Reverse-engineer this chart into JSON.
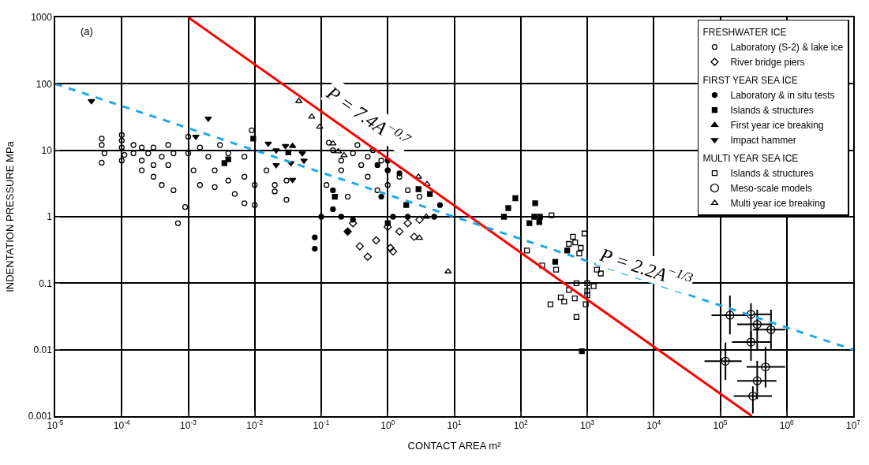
{
  "chart_data": {
    "type": "scatter",
    "xlabel": "CONTACT AREA m²",
    "ylabel": "INDENTATION PRESSURE MPa",
    "annotations": [
      "(a)",
      "FRESHWATER ICE",
      "FIRST YEAR SEA ICE",
      "MULTI YEAR SEA ICE"
    ],
    "log": "xy",
    "grid": true,
    "legend": "top right",
    "xlim": [
      1e-05,
      10000000
    ],
    "ylim": [
      0.001,
      1000
    ],
    "xticks": [
      {
        "value": 1e-05,
        "label": "10$^{-5}$"
      },
      {
        "value": 0.0001,
        "label": "10$^{-4}$"
      },
      {
        "value": 0.001,
        "label": "10$^{-3}$"
      },
      {
        "value": 0.01,
        "label": "10$^{-2}$"
      },
      {
        "value": 0.1,
        "label": "10$^{-1}$"
      },
      {
        "value": 1,
        "label": "10$^{0}$"
      },
      {
        "value": 10,
        "label": "10$^{1}$"
      },
      {
        "value": 100,
        "label": "10$^{2}$"
      },
      {
        "value": 1000,
        "label": "10$^{3}$"
      },
      {
        "value": 10000,
        "label": "10$^{4}$"
      },
      {
        "value": 100000,
        "label": "10$^{5}$"
      },
      {
        "value": 1000000,
        "label": "10$^{6}$"
      },
      {
        "value": 10000000,
        "label": "10$^{7}$"
      }
    ],
    "yticks": [
      0.001,
      0.01,
      0.1,
      1,
      10,
      100,
      1000
    ],
    "series": [
      {
        "name": "Laboratory (S-2) & lake ice",
        "marker": "circle-open",
        "color": "#000000",
        "x": [
          5e-05,
          5e-05,
          5.5e-05,
          5e-05,
          0.0001,
          0.0001,
          0.0001,
          0.00011,
          0.0001,
          0.00015,
          0.00015,
          0.0002,
          0.0002,
          0.0002,
          0.00025,
          0.0003,
          0.0003,
          0.0003,
          0.0004,
          0.0004,
          0.0005,
          0.0005,
          0.0006,
          0.0006,
          0.0007,
          0.0009,
          0.001,
          0.001,
          0.0012,
          0.0015,
          0.0015,
          0.002,
          0.0025,
          0.0025,
          0.003,
          0.004,
          0.004,
          0.005,
          0.007,
          0.007,
          0.007,
          0.009,
          0.01,
          0.01,
          0.015,
          0.02,
          0.02,
          0.03,
          0.03,
          0.13,
          0.15,
          0.2,
          0.3,
          0.5,
          0.8,
          0.2,
          0.5,
          1,
          2,
          0.7,
          3,
          1.5,
          0.4,
          0.12,
          0.25,
          1,
          0.35,
          0.6
        ],
        "values": [
          15,
          12,
          9,
          6.5,
          17,
          14,
          11,
          8.5,
          7,
          12,
          9,
          11,
          7,
          5,
          9,
          11,
          6,
          4,
          8,
          3,
          12,
          6,
          9,
          2.5,
          0.8,
          1.4,
          16,
          9,
          5,
          3,
          11,
          8,
          5,
          2.8,
          12,
          9,
          3.5,
          2.2,
          8,
          4,
          1.6,
          20,
          3,
          1.5,
          5,
          3,
          2.4,
          3.5,
          1.8,
          13,
          10,
          7,
          9,
          8,
          7,
          5,
          4,
          3,
          2.5,
          2.5,
          2,
          4,
          6,
          3,
          2,
          5,
          12,
          10
        ]
      },
      {
        "name": "River bridge piers",
        "marker": "diamond-open",
        "color": "#000000",
        "x": [
          0.3,
          0.67,
          0.38,
          1.1,
          1.0,
          1.5,
          2,
          1.2,
          0.5,
          0.25,
          3,
          2.5
        ],
        "values": [
          0.8,
          0.44,
          0.36,
          0.34,
          0.7,
          0.6,
          0.8,
          0.3,
          0.25,
          0.6,
          0.9,
          0.5
        ]
      },
      {
        "name": "Laboratory & in situ tests",
        "marker": "circle",
        "color": "#000000",
        "x": [
          0.08,
          0.08,
          0.1,
          0.15,
          0.2,
          0.3,
          0.7,
          1.0,
          1.5,
          0.8,
          1.2,
          2,
          6.1,
          5,
          0.15,
          0.25,
          1.0
        ],
        "values": [
          0.49,
          0.33,
          1.0,
          1.3,
          1.0,
          0.9,
          6,
          5,
          4.5,
          2,
          1,
          1.0,
          1.5,
          1.0,
          2.5,
          0.6,
          7
        ]
      },
      {
        "name": "Islands & structures",
        "marker": "square",
        "color": "#000000",
        "x": [
          83,
          65,
          56,
          160,
          135,
          195,
          190,
          165,
          500,
          330,
          830,
          2.9,
          1.9,
          1.0,
          4.3,
          0.16,
          0.0095,
          0.004,
          0.0035,
          0.032
        ],
        "values": [
          1.9,
          1.35,
          1.0,
          1.0,
          0.8,
          1.0,
          0.83,
          1.6,
          0.31,
          0.21,
          0.0095,
          2.6,
          1.5,
          0.8,
          2.2,
          2.0,
          15,
          7.3,
          6.4,
          9.3
        ]
      },
      {
        "name": "First year ice breaking",
        "marker": "triangle-up",
        "color": "#000000",
        "x": [
          0.037
        ],
        "values": [
          11.6
        ]
      },
      {
        "name": "Impact hammer",
        "marker": "triangle-down",
        "color": "#000000",
        "x": [
          3.5e-05,
          0.002,
          0.0013,
          0.016,
          0.021,
          0.029,
          0.021,
          0.035,
          0.055,
          0.037,
          0.052
        ],
        "values": [
          55,
          30,
          16,
          12.6,
          10,
          11.6,
          6,
          6.4,
          7,
          3.6,
          9
        ]
      },
      {
        "name": "Islands & structures",
        "marker": "square-open",
        "color": "#000000",
        "x": [
          290,
          124,
          210,
          340,
          610,
          910,
          660,
          530,
          800,
          760,
          1400,
          1600,
          690,
          1000,
          1250,
          530,
          400,
          450,
          650,
          1000,
          1000,
          950,
          280,
          690
        ],
        "values": [
          1.05,
          0.31,
          0.185,
          0.16,
          0.5,
          0.56,
          0.41,
          0.39,
          0.34,
          0.28,
          0.16,
          0.14,
          0.1,
          0.1,
          0.09,
          0.079,
          0.061,
          0.053,
          0.059,
          0.077,
          0.066,
          0.048,
          0.048,
          0.031
        ]
      },
      {
        "name": "Meso-scale models",
        "marker": "circle-open-large",
        "color": "#000000",
        "x": [
          140000,
          290000,
          360000,
          580000,
          290000,
          120000,
          480000,
          360000,
          310000
        ],
        "values": [
          0.033,
          0.034,
          0.024,
          0.02,
          0.013,
          0.0067,
          0.0055,
          0.0034,
          0.002
        ],
        "xerrors": [
          [
            74000,
            310000
          ],
          [
            310000,
            600000
          ],
          [
            180000,
            600000
          ],
          [
            310000,
            950000
          ],
          [
            150000,
            580000
          ],
          [
            58000,
            210000
          ],
          [
            250000,
            950000
          ],
          [
            180000,
            700000
          ],
          [
            160000,
            600000
          ]
        ],
        "errors": [
          [
            0.017,
            0.065
          ],
          [
            0.011,
            0.05
          ],
          [
            0.01,
            0.04
          ],
          [
            0.01,
            0.04
          ],
          [
            0.0068,
            0.019
          ],
          [
            0.0035,
            0.0128
          ],
          [
            0.0027,
            0.011
          ],
          [
            0.0018,
            0.0068
          ],
          [
            0.0011,
            0.0028
          ]
        ]
      },
      {
        "name": "Multi year ice breaking",
        "marker": "triangle-up-open",
        "color": "#000000",
        "x": [
          0.046,
          0.072,
          0.095,
          0.15,
          0.18,
          0.22,
          2.9,
          3.9,
          3.0,
          8.1,
          3.8
        ],
        "values": [
          55,
          32,
          22.5,
          12.6,
          9.6,
          8.4,
          4.0,
          3.1,
          0.48,
          0.15,
          1.0
        ]
      },
      {
        "name": "P = 7.4A$^{−0.7}$",
        "type": "line",
        "line_style": "solid",
        "color": "#ff0000",
        "x": [
          0.001,
          300000
        ],
        "values": [
          1000,
          0.001
        ]
      },
      {
        "name": "P = 2.2A$^{−1/3}$",
        "type": "line",
        "line_style": "dashed",
        "color": "#1ca9e6",
        "x": [
          1e-05,
          10000000
        ],
        "values": [
          100,
          0.01
        ]
      }
    ]
  }
}
